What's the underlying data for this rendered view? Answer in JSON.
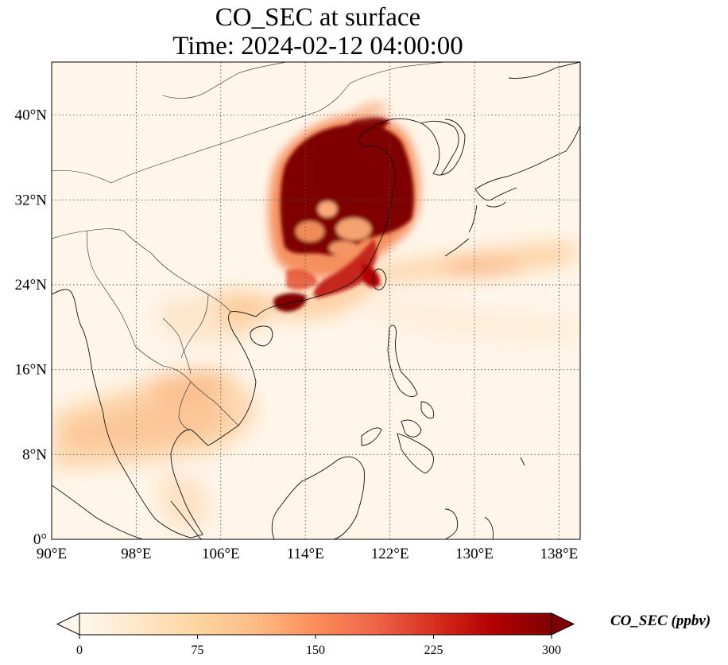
{
  "title": {
    "line1": "CO_SEC at surface",
    "line2": "Time: 2024-02-12 04:00:00"
  },
  "map": {
    "variable": "CO_SEC",
    "level": "surface",
    "extent": {
      "lon_min": 90,
      "lon_max": 140,
      "lat_min": 0,
      "lat_max": 45
    },
    "gridlines": "dotted",
    "lon_ticks": [
      {
        "value": 90,
        "label": "90°E"
      },
      {
        "value": 98,
        "label": "98°E"
      },
      {
        "value": 106,
        "label": "106°E"
      },
      {
        "value": 114,
        "label": "114°E"
      },
      {
        "value": 122,
        "label": "122°E"
      },
      {
        "value": 130,
        "label": "130°E"
      },
      {
        "value": 138,
        "label": "138°E"
      }
    ],
    "lat_ticks": [
      {
        "value": 0,
        "label": "0°"
      },
      {
        "value": 8,
        "label": "8°N"
      },
      {
        "value": 16,
        "label": "16°N"
      },
      {
        "value": 24,
        "label": "24°N"
      },
      {
        "value": 32,
        "label": "32°N"
      },
      {
        "value": 40,
        "label": "40°N"
      }
    ]
  },
  "colorbar": {
    "label": "CO_SEC (ppbv)",
    "min": 0,
    "max": 300,
    "extend": "both",
    "colormap": "OrRd",
    "stops": [
      "#fff7ec",
      "#fee8c8",
      "#fdd49e",
      "#fdbb84",
      "#fc8d59",
      "#ef6548",
      "#d7301f",
      "#b30000",
      "#7f0000"
    ],
    "ticks": [
      {
        "value": 0,
        "label": "0"
      },
      {
        "value": 75,
        "label": "75"
      },
      {
        "value": 150,
        "label": "150"
      },
      {
        "value": 225,
        "label": "225"
      },
      {
        "value": 300,
        "label": "300"
      }
    ]
  }
}
